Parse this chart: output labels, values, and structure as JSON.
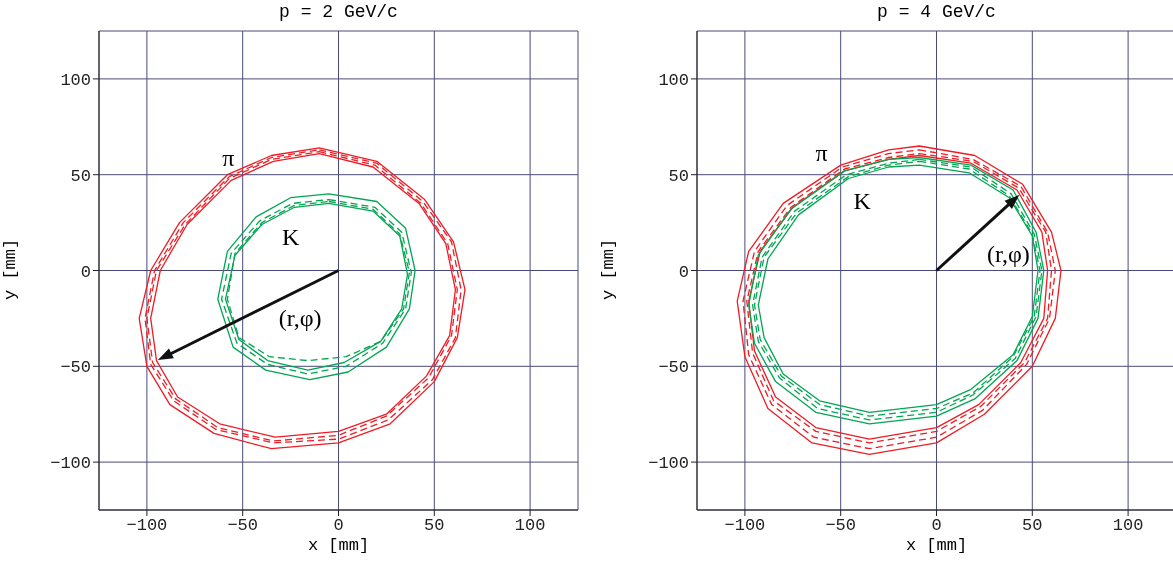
{
  "chart_data": [
    {
      "type": "line",
      "title": "p = 2 GeV/c",
      "xlabel": "x [mm]",
      "ylabel": "y [mm]",
      "xlim": [
        -125,
        125
      ],
      "ylim": [
        -125,
        125
      ],
      "xticks": [
        -100,
        -50,
        0,
        50,
        100
      ],
      "yticks": [
        -100,
        -50,
        0,
        50,
        100
      ],
      "grid": true,
      "annotations": [
        "π",
        "K",
        "(r,φ)"
      ]
    },
    {
      "type": "line",
      "title": "p = 4 GeV/c",
      "xlabel": "x [mm]",
      "ylabel": "y [mm]",
      "xlim": [
        -125,
        125
      ],
      "ylim": [
        -125,
        125
      ],
      "xticks": [
        -100,
        -50,
        0,
        50,
        100
      ],
      "yticks": [
        -100,
        -50,
        0,
        50,
        100
      ],
      "grid": true,
      "annotations": [
        "π",
        "K",
        "(r,φ)"
      ]
    }
  ]
}
